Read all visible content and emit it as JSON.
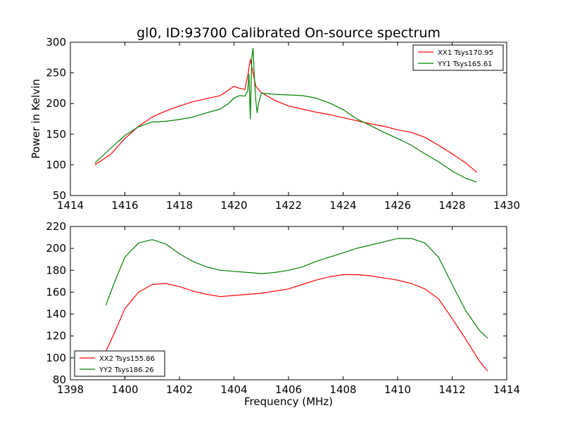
{
  "chart_data": [
    {
      "type": "line",
      "title": "gl0, ID:93700 Calibrated On-source spectrum",
      "xlabel": "",
      "ylabel": "Power in Kelvin",
      "xlim": [
        1414,
        1430
      ],
      "ylim": [
        50,
        300
      ],
      "xticks": [
        "1414",
        "1416",
        "1418",
        "1420",
        "1422",
        "1424",
        "1426",
        "1428",
        "1430"
      ],
      "yticks": [
        "50",
        "100",
        "150",
        "200",
        "250",
        "300"
      ],
      "legend_position": "top-right",
      "series": [
        {
          "name": "XX1 Tsys170.95",
          "color": "#ff0000",
          "x": [
            1414.9,
            1415.5,
            1416,
            1416.5,
            1417,
            1417.5,
            1418,
            1418.5,
            1419,
            1419.5,
            1419.8,
            1420.0,
            1420.2,
            1420.4,
            1420.5,
            1420.6,
            1420.7,
            1420.8,
            1421.0,
            1421.5,
            1422,
            1422.5,
            1423,
            1423.5,
            1424,
            1424.5,
            1425,
            1425.5,
            1426,
            1426.5,
            1427,
            1427.5,
            1428,
            1428.5,
            1428.9
          ],
          "y": [
            100,
            118,
            143,
            163,
            178,
            188,
            196,
            203,
            208,
            213,
            222,
            228,
            225,
            223,
            245,
            272,
            250,
            228,
            218,
            205,
            196,
            191,
            186,
            182,
            177,
            172,
            167,
            163,
            157,
            153,
            145,
            132,
            118,
            103,
            88
          ]
        },
        {
          "name": "YY1 Tsys165.61",
          "color": "#008000",
          "x": [
            1414.9,
            1415.5,
            1416,
            1416.5,
            1417,
            1417.5,
            1418,
            1418.5,
            1419,
            1419.5,
            1419.8,
            1420.0,
            1420.2,
            1420.4,
            1420.5,
            1420.55,
            1420.6,
            1420.65,
            1420.7,
            1420.75,
            1420.8,
            1420.85,
            1420.9,
            1421.0,
            1421.5,
            1422,
            1422.5,
            1423,
            1423.5,
            1424,
            1424.5,
            1425,
            1425.5,
            1426,
            1426.5,
            1427,
            1427.5,
            1428,
            1428.5,
            1428.9
          ],
          "y": [
            103,
            128,
            148,
            162,
            170,
            171,
            174,
            178,
            185,
            191,
            200,
            209,
            213,
            212,
            220,
            248,
            175,
            275,
            290,
            240,
            205,
            185,
            200,
            217,
            215,
            214,
            213,
            209,
            201,
            190,
            175,
            164,
            153,
            143,
            132,
            118,
            105,
            90,
            78,
            72
          ]
        }
      ]
    },
    {
      "type": "line",
      "title": "",
      "xlabel": "Frequency (MHz)",
      "ylabel": "",
      "xlim": [
        1398,
        1414
      ],
      "ylim": [
        80,
        220
      ],
      "xticks": [
        "1398",
        "1400",
        "1402",
        "1404",
        "1406",
        "1408",
        "1410",
        "1412",
        "1414"
      ],
      "yticks": [
        "80",
        "100",
        "120",
        "140",
        "160",
        "180",
        "200",
        "220"
      ],
      "legend_position": "lower-left",
      "series": [
        {
          "name": "XX2 Tsys155.86",
          "color": "#ff0000",
          "x": [
            1399.3,
            1399.6,
            1400,
            1400.5,
            1401,
            1401.5,
            1402,
            1402.5,
            1403,
            1403.5,
            1404,
            1404.5,
            1405,
            1405.5,
            1406,
            1406.5,
            1407,
            1407.5,
            1408,
            1408.5,
            1409,
            1409.5,
            1410,
            1410.5,
            1411,
            1411.5,
            1412,
            1412.5,
            1413,
            1413.3
          ],
          "y": [
            106,
            122,
            145,
            160,
            167,
            168,
            165,
            161,
            158,
            156,
            157,
            158,
            159,
            161,
            163,
            167,
            171,
            174,
            176,
            176,
            175,
            173,
            171,
            168,
            163,
            154,
            136,
            117,
            97,
            88
          ]
        },
        {
          "name": "YY2 Tsys186.26",
          "color": "#008000",
          "x": [
            1399.3,
            1399.6,
            1400,
            1400.5,
            1401,
            1401.5,
            1402,
            1402.5,
            1403,
            1403.5,
            1404,
            1404.5,
            1405,
            1405.5,
            1406,
            1406.5,
            1407,
            1407.5,
            1408,
            1408.5,
            1409,
            1409.5,
            1410,
            1410.5,
            1411,
            1411.5,
            1412,
            1412.5,
            1413,
            1413.3
          ],
          "y": [
            148,
            168,
            192,
            205,
            208,
            204,
            195,
            188,
            183,
            180,
            179,
            178,
            177,
            178,
            180,
            183,
            188,
            192,
            196,
            200,
            203,
            206,
            209,
            209,
            205,
            192,
            167,
            143,
            125,
            118
          ]
        }
      ]
    }
  ]
}
